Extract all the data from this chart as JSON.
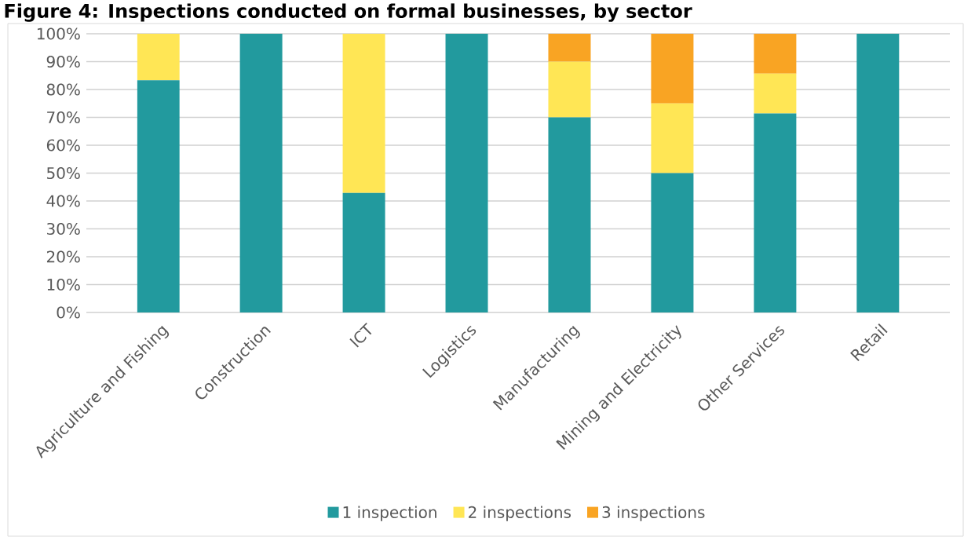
{
  "chart_data": {
    "type": "bar",
    "stacked": true,
    "title": "Figure 4: Inspections conducted on formal businesses, by sector",
    "categories": [
      "Agriculture and Fishing",
      "Construction",
      "ICT",
      "Logistics",
      "Manufacturing",
      "Mining and Electricity",
      "Other Services",
      "Retail"
    ],
    "series": [
      {
        "name": "1 inspection",
        "color": "#229a9e",
        "values": [
          83.3,
          100,
          42.9,
          100,
          70,
          50,
          71.4,
          100
        ]
      },
      {
        "name": "2 inspections",
        "color": "#ffe655",
        "values": [
          16.7,
          0,
          57.1,
          0,
          20,
          25,
          14.3,
          0
        ]
      },
      {
        "name": "3 inspections",
        "color": "#f9a423",
        "values": [
          0,
          0,
          0,
          0,
          10,
          25,
          14.3,
          0
        ]
      }
    ],
    "ylim": [
      0,
      100
    ],
    "yticks": [
      {
        "value": 0,
        "label": "0%"
      },
      {
        "value": 10,
        "label": "10%"
      },
      {
        "value": 20,
        "label": "20%"
      },
      {
        "value": 30,
        "label": "30%"
      },
      {
        "value": 40,
        "label": "40%"
      },
      {
        "value": 50,
        "label": "50%"
      },
      {
        "value": 60,
        "label": "60%"
      },
      {
        "value": 70,
        "label": "70%"
      },
      {
        "value": 80,
        "label": "80%"
      },
      {
        "value": 90,
        "label": "90%"
      },
      {
        "value": 100,
        "label": "100%"
      }
    ],
    "grid": "y",
    "legend": "bottom"
  }
}
